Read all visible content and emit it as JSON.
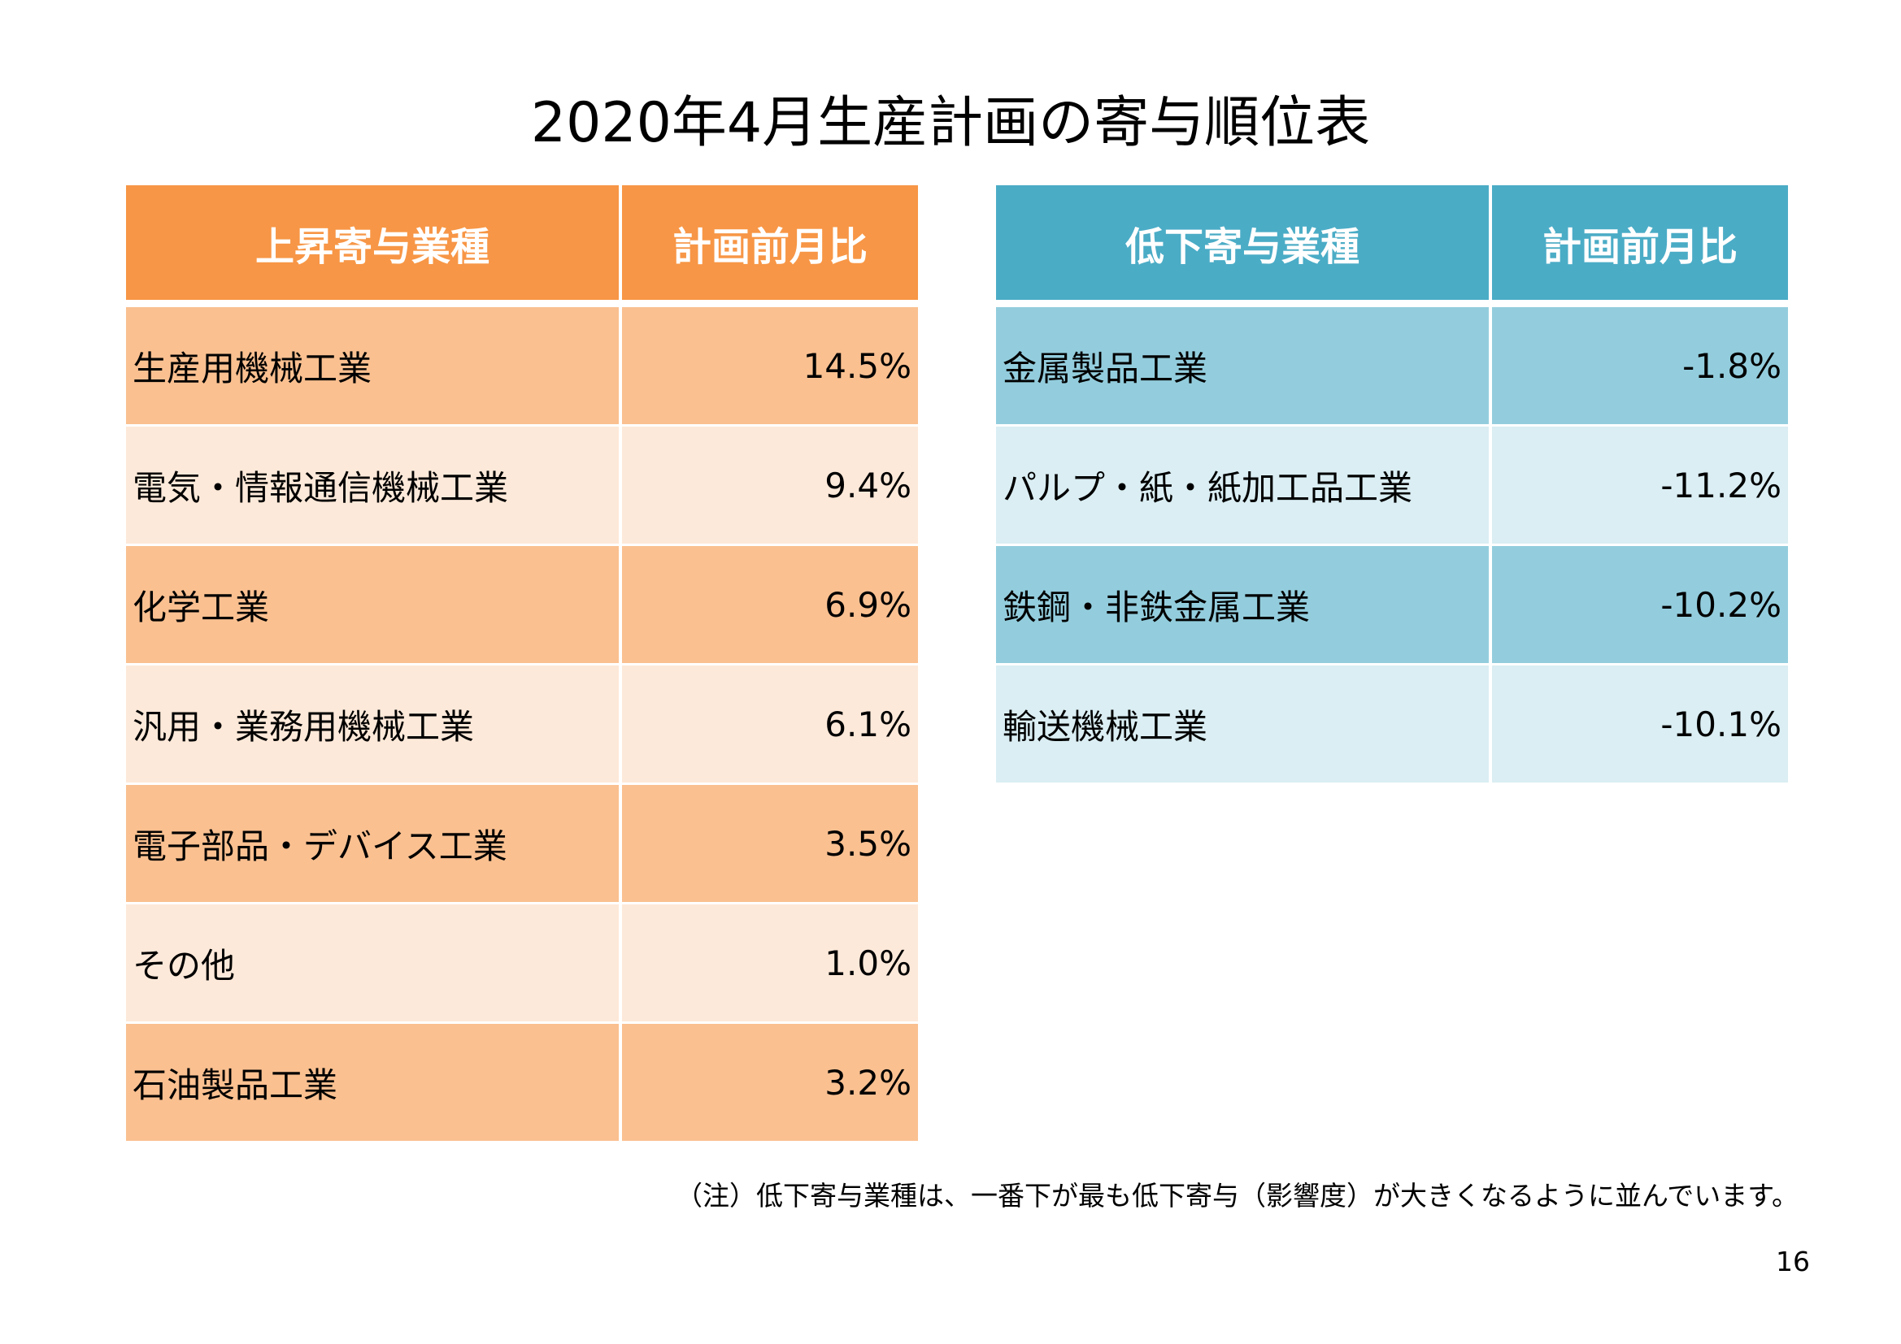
{
  "title": "2020年4月生産計画の寄与順位表",
  "increase_table": {
    "headers": [
      "上昇寄与業種",
      "計画前月比"
    ],
    "rows": [
      [
        "生産用機械工業",
        "14.5%"
      ],
      [
        "電気・情報通信機械工業",
        "9.4%"
      ],
      [
        "化学工業",
        "6.9%"
      ],
      [
        "汎用・業務用機械工業",
        "6.1%"
      ],
      [
        "電子部品・デバイス工業",
        "3.5%"
      ],
      [
        "その他",
        "1.0%"
      ],
      [
        "石油製品工業",
        "3.2%"
      ]
    ]
  },
  "decrease_table": {
    "headers": [
      "低下寄与業種",
      "計画前月比"
    ],
    "rows": [
      [
        "金属製品工業",
        "-1.8%"
      ],
      [
        "パルプ・紙・紙加工品工業",
        "-11.2%"
      ],
      [
        "鉄鋼・非鉄金属工業",
        "-10.2%"
      ],
      [
        "輸送機械工業",
        "-10.1%"
      ]
    ]
  },
  "note": "（注）低下寄与業種は、一番下が最も低下寄与（影響度）が大きくなるように並んでいます。",
  "page_number": "16",
  "colors": {
    "orange_header": "#F79646",
    "blue_header": "#4BACC6"
  }
}
